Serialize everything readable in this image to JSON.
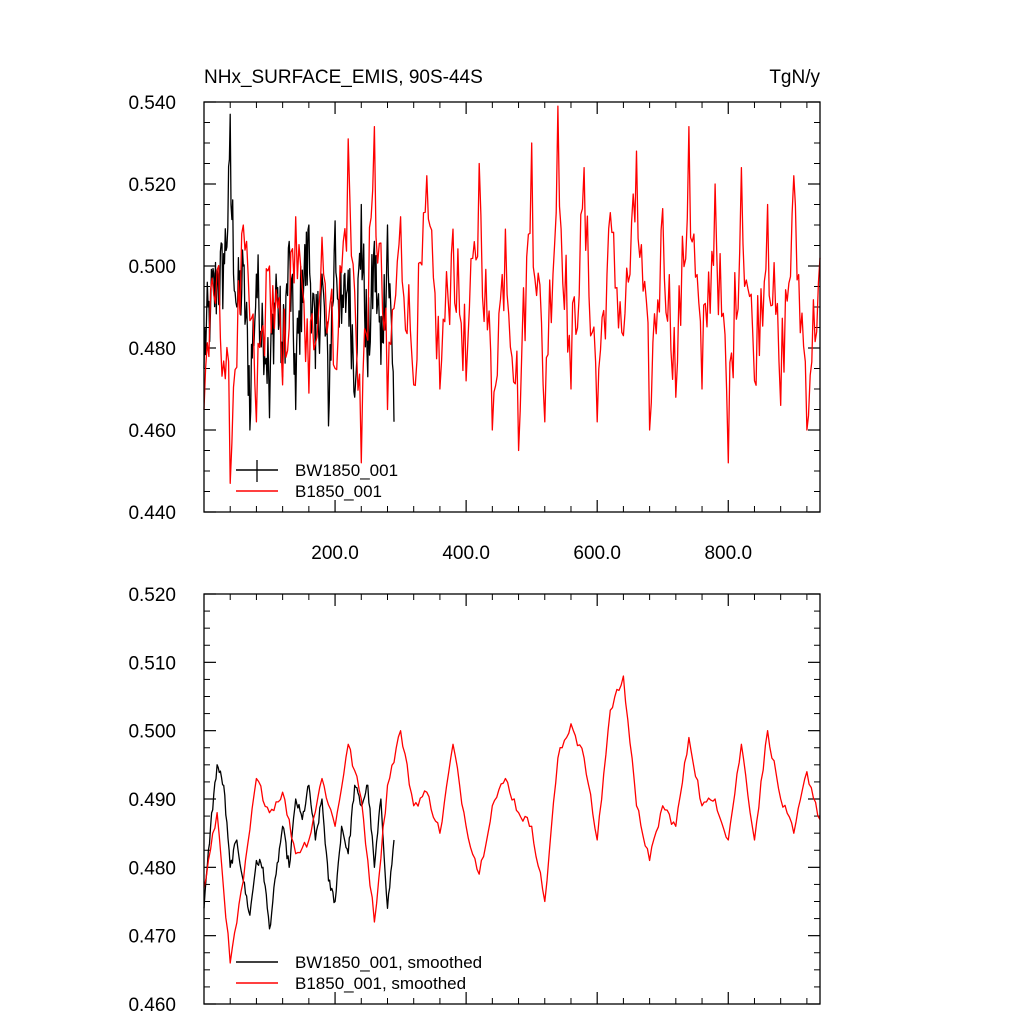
{
  "chart_data": [
    {
      "type": "line",
      "title": "NHx_SURFACE_EMIS, 90S-44S",
      "units": "TgN/y",
      "xlim": [
        0,
        940
      ],
      "ylim": [
        0.44,
        0.54
      ],
      "y_ticks": [
        0.44,
        0.46,
        0.48,
        0.5,
        0.52,
        0.54
      ],
      "y_tick_labels": [
        "0.440",
        "0.460",
        "0.480",
        "0.500",
        "0.520",
        "0.540"
      ],
      "x_ticks": [
        200,
        400,
        600,
        800
      ],
      "x_tick_labels": [
        "200.0",
        "400.0",
        "600.0",
        "800.0"
      ],
      "legend_placement": "bottom-left",
      "series": [
        {
          "name": "BW1850_001",
          "color": "#000000",
          "x": [
            0,
            10,
            20,
            30,
            40,
            50,
            60,
            70,
            80,
            90,
            100,
            110,
            120,
            130,
            140,
            150,
            160,
            170,
            180,
            190,
            200,
            210,
            220,
            230,
            240,
            250,
            260,
            270,
            280,
            290
          ],
          "values": [
            0.475,
            0.49,
            0.499,
            0.503,
            0.537,
            0.49,
            0.5,
            0.46,
            0.498,
            0.484,
            0.463,
            0.498,
            0.473,
            0.506,
            0.465,
            0.499,
            0.51,
            0.475,
            0.498,
            0.461,
            0.511,
            0.486,
            0.499,
            0.468,
            0.515,
            0.473,
            0.506,
            0.476,
            0.51,
            0.462
          ]
        },
        {
          "name": "B1850_001",
          "color": "#ff0000",
          "x": [
            0,
            20,
            40,
            60,
            80,
            100,
            120,
            140,
            160,
            180,
            200,
            220,
            240,
            260,
            280,
            300,
            320,
            340,
            360,
            380,
            400,
            420,
            440,
            460,
            480,
            500,
            520,
            540,
            560,
            580,
            600,
            620,
            640,
            660,
            680,
            700,
            720,
            740,
            760,
            780,
            800,
            820,
            840,
            860,
            880,
            900,
            920,
            940
          ],
          "values": [
            0.465,
            0.499,
            0.447,
            0.51,
            0.462,
            0.5,
            0.471,
            0.512,
            0.469,
            0.507,
            0.475,
            0.531,
            0.452,
            0.534,
            0.465,
            0.512,
            0.471,
            0.522,
            0.47,
            0.509,
            0.472,
            0.525,
            0.46,
            0.509,
            0.455,
            0.53,
            0.462,
            0.539,
            0.47,
            0.524,
            0.462,
            0.513,
            0.483,
            0.528,
            0.46,
            0.514,
            0.468,
            0.534,
            0.47,
            0.52,
            0.452,
            0.524,
            0.472,
            0.515,
            0.466,
            0.522,
            0.46,
            0.502
          ]
        }
      ]
    },
    {
      "type": "line",
      "xlim": [
        0,
        940
      ],
      "ylim": [
        0.46,
        0.52
      ],
      "y_ticks": [
        0.46,
        0.47,
        0.48,
        0.49,
        0.5,
        0.51,
        0.52
      ],
      "y_tick_labels": [
        "0.460",
        "0.470",
        "0.480",
        "0.490",
        "0.500",
        "0.510",
        "0.520"
      ],
      "x_ticks": [
        200,
        400,
        600,
        800
      ],
      "legend_placement": "bottom-left",
      "series": [
        {
          "name": "BW1850_001, smoothed",
          "color": "#000000",
          "x": [
            0,
            10,
            20,
            30,
            40,
            50,
            60,
            70,
            80,
            90,
            100,
            110,
            120,
            130,
            140,
            150,
            160,
            170,
            180,
            190,
            200,
            210,
            220,
            230,
            240,
            250,
            260,
            270,
            280,
            290
          ],
          "values": [
            0.474,
            0.486,
            0.495,
            0.492,
            0.48,
            0.484,
            0.478,
            0.473,
            0.481,
            0.48,
            0.471,
            0.479,
            0.486,
            0.48,
            0.49,
            0.487,
            0.492,
            0.484,
            0.49,
            0.478,
            0.475,
            0.486,
            0.482,
            0.492,
            0.489,
            0.492,
            0.48,
            0.49,
            0.474,
            0.484
          ]
        },
        {
          "name": "B1850_001, smoothed",
          "color": "#ff0000",
          "x": [
            0,
            20,
            40,
            60,
            80,
            100,
            120,
            140,
            160,
            180,
            200,
            220,
            240,
            260,
            280,
            300,
            320,
            340,
            360,
            380,
            400,
            420,
            440,
            460,
            480,
            500,
            520,
            540,
            560,
            580,
            600,
            620,
            640,
            660,
            680,
            700,
            720,
            740,
            760,
            780,
            800,
            820,
            840,
            860,
            880,
            900,
            920,
            940
          ],
          "values": [
            0.477,
            0.488,
            0.466,
            0.478,
            0.493,
            0.488,
            0.491,
            0.482,
            0.484,
            0.493,
            0.486,
            0.498,
            0.49,
            0.472,
            0.492,
            0.5,
            0.489,
            0.491,
            0.485,
            0.498,
            0.486,
            0.479,
            0.489,
            0.493,
            0.488,
            0.486,
            0.475,
            0.496,
            0.501,
            0.496,
            0.484,
            0.503,
            0.508,
            0.489,
            0.481,
            0.489,
            0.486,
            0.499,
            0.489,
            0.49,
            0.484,
            0.498,
            0.484,
            0.5,
            0.49,
            0.485,
            0.494,
            0.487
          ]
        }
      ]
    }
  ]
}
